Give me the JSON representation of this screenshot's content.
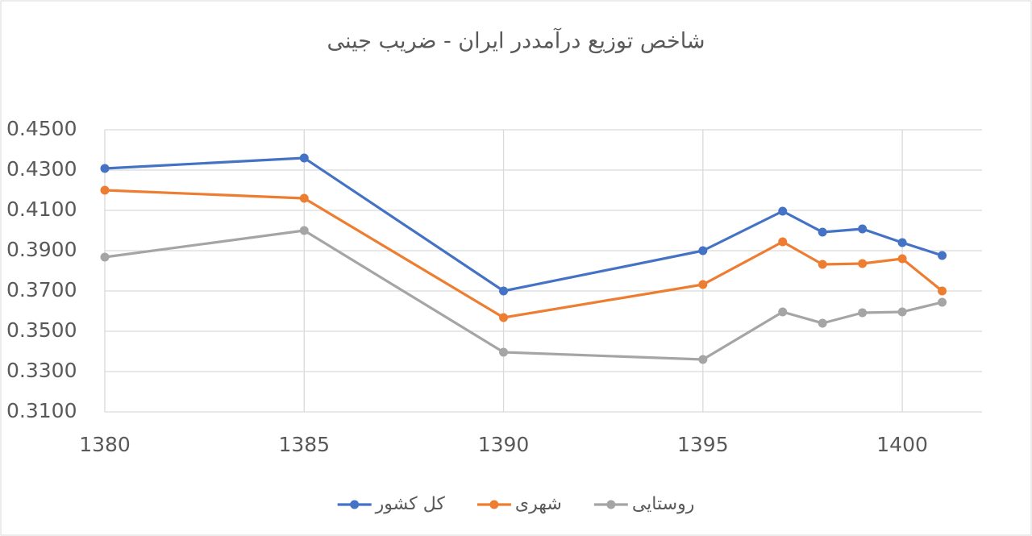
{
  "chart_data": {
    "type": "line",
    "title": "شاخص توزیع درآمددر ایران - ضریب جینی",
    "x": [
      1380,
      1385,
      1390,
      1395,
      1397,
      1398,
      1399,
      1400,
      1401
    ],
    "series": [
      {
        "name": "کل کشور",
        "color": "#4472c4",
        "values": [
          0.4308,
          0.436,
          0.37,
          0.39,
          0.4096,
          0.3992,
          0.4008,
          0.394,
          0.3876
        ]
      },
      {
        "name": "شهری",
        "color": "#ed7d31",
        "values": [
          0.42,
          0.416,
          0.3568,
          0.3732,
          0.3944,
          0.3832,
          0.3836,
          0.386,
          0.37
        ]
      },
      {
        "name": "روستایی",
        "color": "#a5a5a5",
        "values": [
          0.3868,
          0.4,
          0.3396,
          0.336,
          0.3596,
          0.354,
          0.3592,
          0.3596,
          0.3644
        ]
      }
    ],
    "xlim": [
      1380,
      1402
    ],
    "xticks": [
      1380,
      1385,
      1390,
      1395,
      1400
    ],
    "ylim": [
      0.31,
      0.45
    ],
    "yticks": [
      {
        "value": 0.31,
        "label": "0.3100"
      },
      {
        "value": 0.33,
        "label": "0.3300"
      },
      {
        "value": 0.35,
        "label": "0.3500"
      },
      {
        "value": 0.37,
        "label": "0.3700"
      },
      {
        "value": 0.39,
        "label": "0.3900"
      },
      {
        "value": 0.41,
        "label": "0.4100"
      },
      {
        "value": 0.43,
        "label": "0.4300"
      },
      {
        "value": 0.45,
        "label": "0.4500"
      }
    ],
    "grid": true,
    "legend": "bottom"
  }
}
